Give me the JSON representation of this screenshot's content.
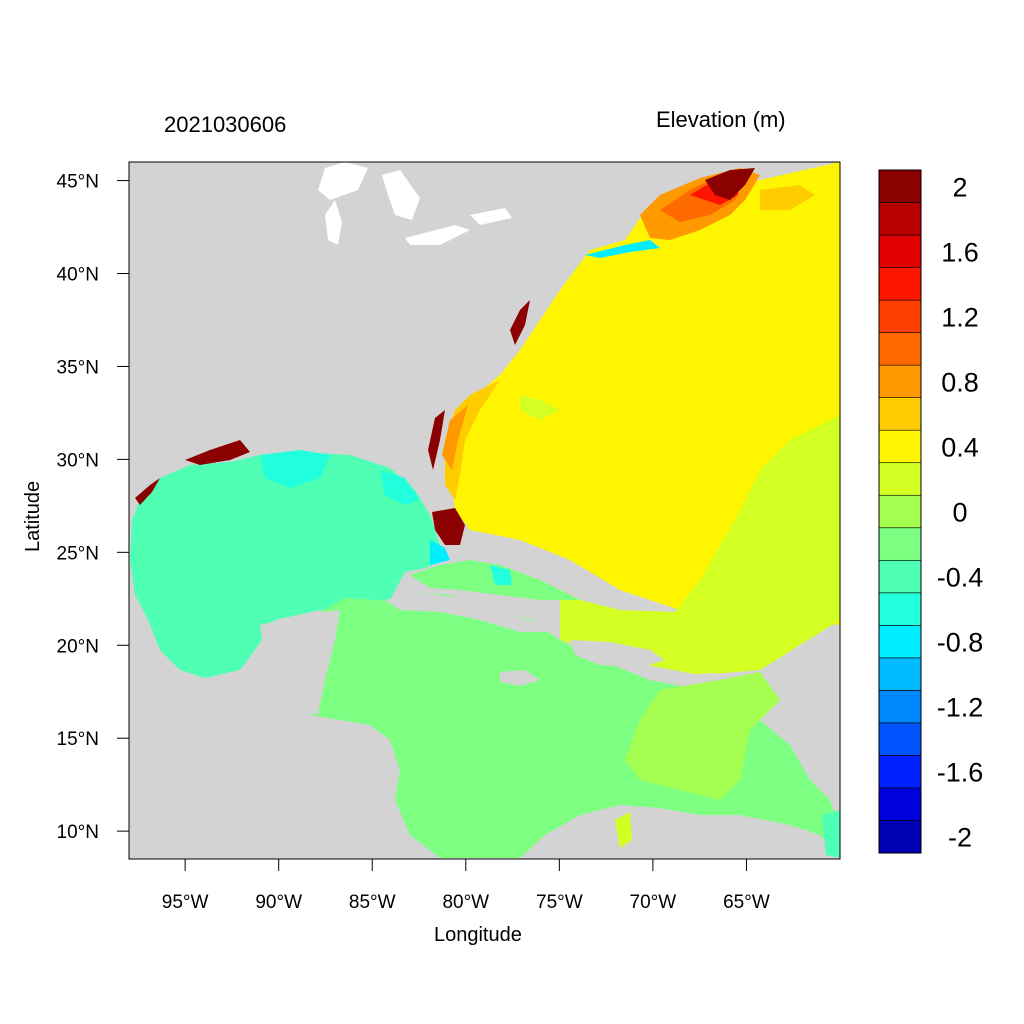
{
  "titles": {
    "left": "2021030606",
    "right": "Elevation (m)",
    "x_label": "Longitude",
    "y_label": "Latitude"
  },
  "x_ticks": [
    {
      "value": -95,
      "label": "95°W"
    },
    {
      "value": -90,
      "label": "90°W"
    },
    {
      "value": -85,
      "label": "85°W"
    },
    {
      "value": -80,
      "label": "80°W"
    },
    {
      "value": -75,
      "label": "75°W"
    },
    {
      "value": -70,
      "label": "70°W"
    },
    {
      "value": -65,
      "label": "65°W"
    }
  ],
  "y_ticks": [
    {
      "value": 45,
      "label": "45°N"
    },
    {
      "value": 40,
      "label": "40°N"
    },
    {
      "value": 35,
      "label": "35°N"
    },
    {
      "value": 30,
      "label": "30°N"
    },
    {
      "value": 25,
      "label": "25°N"
    },
    {
      "value": 20,
      "label": "20°N"
    },
    {
      "value": 15,
      "label": "15°N"
    },
    {
      "value": 10,
      "label": "10°N"
    }
  ],
  "map_extent": {
    "lon": [
      -98,
      -60
    ],
    "lat": [
      8.5,
      46
    ]
  },
  "colorbar": {
    "colors_bottom_to_top": [
      "#0000b4",
      "#0000dc",
      "#0022ff",
      "#0055ff",
      "#0088ff",
      "#00bbff",
      "#00eeff",
      "#22ffdd",
      "#4effb4",
      "#7dff82",
      "#a5ff50",
      "#d4ff22",
      "#fff500",
      "#ffcc00",
      "#ff9900",
      "#ff6a00",
      "#ff4000",
      "#ff1500",
      "#e00000",
      "#b80000",
      "#8b0000"
    ],
    "labels": [
      {
        "value": -2,
        "label": "-2"
      },
      {
        "value": -1.6,
        "label": "-1.6"
      },
      {
        "value": -1.2,
        "label": "-1.2"
      },
      {
        "value": -0.8,
        "label": "-0.8"
      },
      {
        "value": -0.4,
        "label": "-0.4"
      },
      {
        "value": 0,
        "label": "0"
      },
      {
        "value": 0.4,
        "label": "0.4"
      },
      {
        "value": 0.8,
        "label": "0.8"
      },
      {
        "value": 1.2,
        "label": "1.2"
      },
      {
        "value": 1.6,
        "label": "1.6"
      },
      {
        "value": 2,
        "label": "2"
      }
    ]
  },
  "colors": {
    "land": "#d3d3d3",
    "gulf": "#4effb4",
    "caribbean": "#7dff82",
    "atlantic_high": "#fff500",
    "atlantic_mid": "#d4ff22"
  }
}
